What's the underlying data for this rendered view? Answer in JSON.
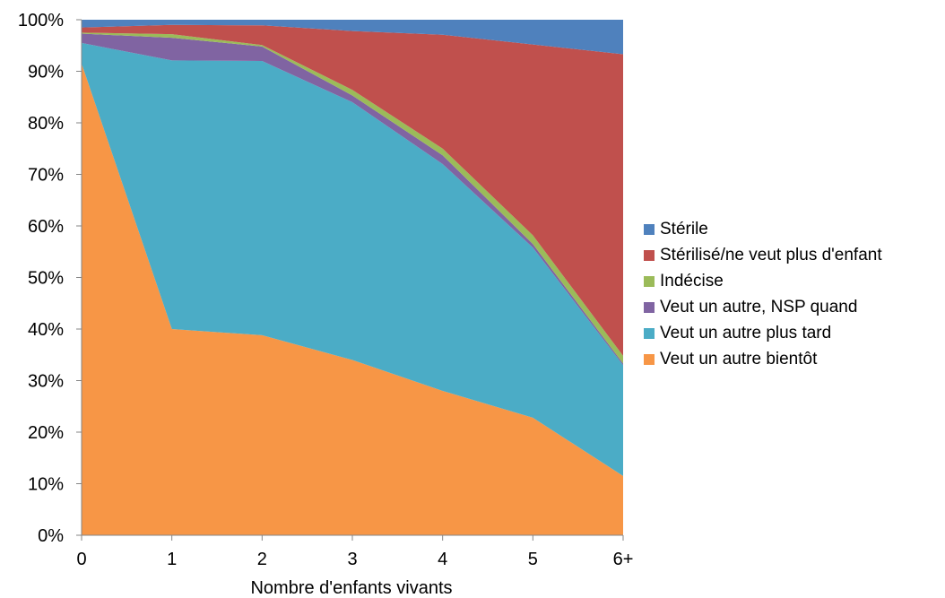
{
  "chart_data": {
    "type": "area",
    "stacked": "percent",
    "xlabel": "Nombre d'enfants vivants",
    "ylabel": "",
    "categories": [
      "0",
      "1",
      "2",
      "3",
      "4",
      "5",
      "6+"
    ],
    "ylim": [
      0,
      100
    ],
    "y_ticks": [
      "0%",
      "10%",
      "20%",
      "30%",
      "40%",
      "50%",
      "60%",
      "70%",
      "80%",
      "90%",
      "100%"
    ],
    "legend_position": "right",
    "series": [
      {
        "name": "Veut un autre bientôt",
        "color": "#F79646",
        "values": [
          91.5,
          40,
          38.8,
          34,
          28,
          22.8,
          11.5
        ]
      },
      {
        "name": "Veut un autre plus tard",
        "color": "#4BACC6",
        "values": [
          4,
          52.1,
          53.2,
          50,
          44,
          33,
          21.5
        ]
      },
      {
        "name": "Veut un autre, NSP quand",
        "color": "#8064A2",
        "values": [
          1.8,
          4.4,
          2.8,
          1.3,
          1.7,
          0.7,
          0.3
        ]
      },
      {
        "name": "Indécise",
        "color": "#9BBB59",
        "values": [
          0.2,
          0.7,
          0.3,
          1.1,
          1.3,
          1.7,
          1.5
        ]
      },
      {
        "name": "Stérilisé/ne veut plus d'enfant",
        "color": "#C0504D",
        "values": [
          1.0,
          1.8,
          3.8,
          11.4,
          22.1,
          37,
          58.5
        ]
      },
      {
        "name": "Stérile",
        "color": "#4F81BD",
        "values": [
          1.5,
          1.0,
          1.1,
          2.2,
          2.9,
          4.8,
          6.7
        ]
      }
    ]
  }
}
